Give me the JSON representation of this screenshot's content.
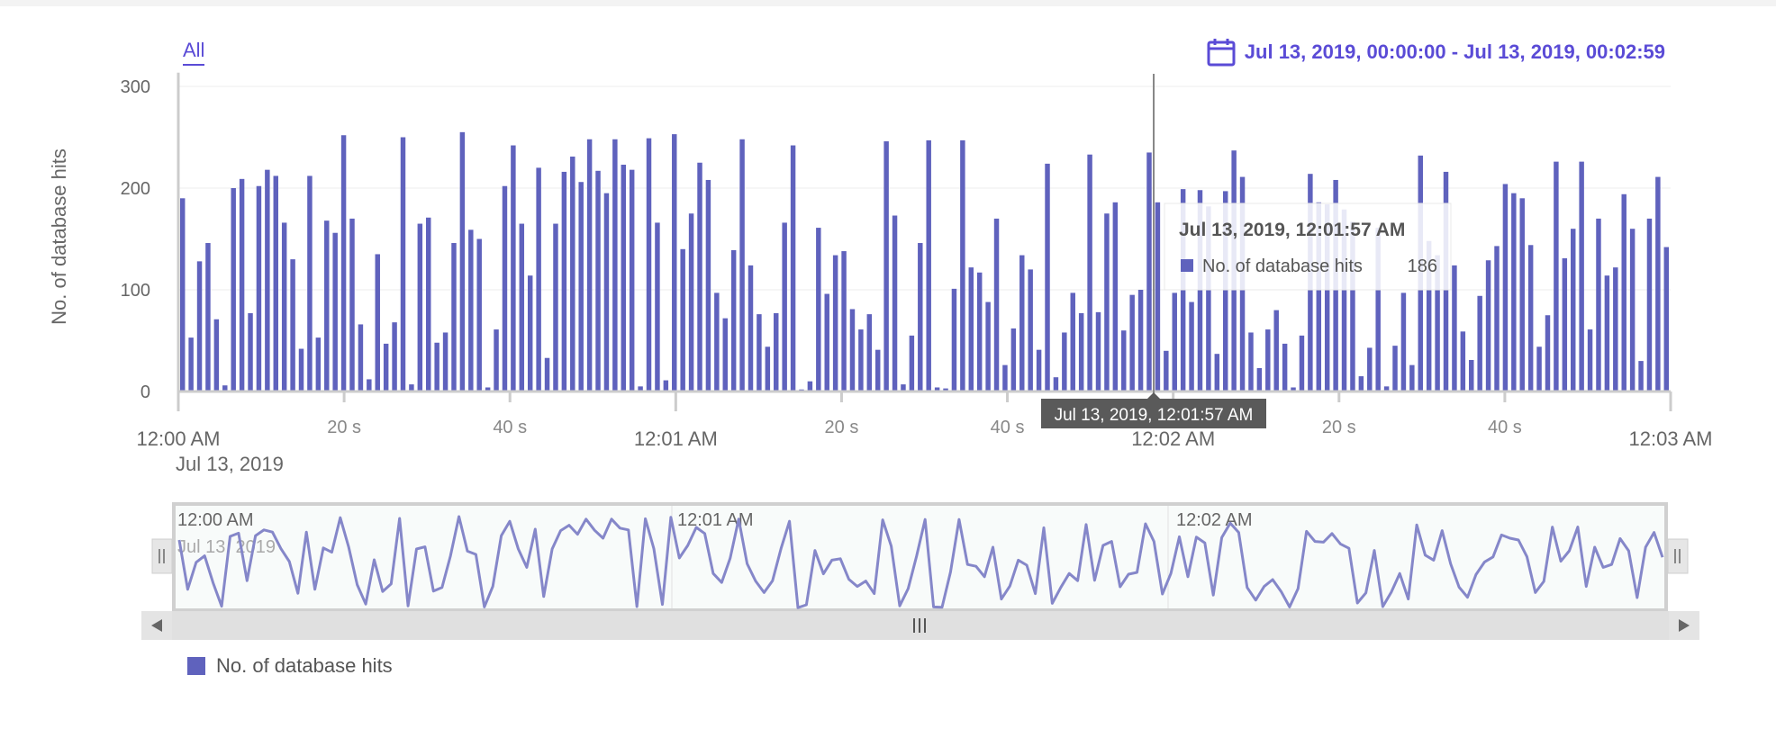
{
  "range_selector": {
    "all_label": "All"
  },
  "date_range": {
    "label": "Jul 13, 2019, 00:00:00 - Jul 13, 2019, 00:02:59"
  },
  "tooltip": {
    "title": "Jul 13, 2019, 12:01:57 AM",
    "series_label": "No. of database hits",
    "value": "186",
    "crosshair_label": "Jul 13, 2019, 12:01:57 AM"
  },
  "navigator": {
    "tick_labels": [
      "12:00 AM",
      "12:01 AM",
      "12:02 AM"
    ],
    "date_label": "Jul 13, 2019"
  },
  "legend": {
    "label": "No. of database hits"
  },
  "colors": {
    "bar": "#5f62bd",
    "line": "#8587c9",
    "accent": "#5a4bd6"
  },
  "chart_data": {
    "type": "bar",
    "title": "",
    "xlabel": "",
    "ylabel": "No. of database hits",
    "ylim": [
      0,
      310
    ],
    "y_ticks": [
      0,
      100,
      200,
      300
    ],
    "x_range_seconds": [
      0,
      180
    ],
    "x_tick_labels": [
      {
        "t": 0,
        "label": "12:00 AM",
        "major": true,
        "sub": "Jul 13, 2019"
      },
      {
        "t": 20,
        "label": "20 s",
        "major": false
      },
      {
        "t": 40,
        "label": "40 s",
        "major": false
      },
      {
        "t": 60,
        "label": "12:01 AM",
        "major": true
      },
      {
        "t": 80,
        "label": "20 s",
        "major": false
      },
      {
        "t": 100,
        "label": "40 s",
        "major": false
      },
      {
        "t": 120,
        "label": "12:02 AM",
        "major": true
      },
      {
        "t": 140,
        "label": "20 s",
        "major": false
      },
      {
        "t": 160,
        "label": "40 s",
        "major": false
      },
      {
        "t": 180,
        "label": "12:03 AM",
        "major": true
      }
    ],
    "grid": true,
    "legend_position": "bottom-left",
    "series": [
      {
        "name": "No. of database hits",
        "values": [
          190,
          53,
          128,
          146,
          71,
          6,
          200,
          209,
          77,
          202,
          218,
          212,
          166,
          130,
          42,
          212,
          53,
          168,
          156,
          252,
          170,
          66,
          12,
          135,
          47,
          68,
          250,
          7,
          165,
          171,
          48,
          58,
          146,
          255,
          159,
          150,
          4,
          61,
          202,
          242,
          165,
          114,
          220,
          33,
          165,
          216,
          231,
          206,
          248,
          217,
          195,
          248,
          223,
          218,
          5,
          249,
          166,
          11,
          253,
          140,
          175,
          225,
          208,
          97,
          72,
          139,
          248,
          124,
          76,
          44,
          77,
          166,
          242,
          2,
          10,
          161,
          96,
          134,
          138,
          81,
          61,
          76,
          41,
          246,
          173,
          7,
          55,
          146,
          247,
          4,
          3,
          101,
          247,
          122,
          117,
          88,
          170,
          26,
          62,
          134,
          120,
          41,
          224,
          14,
          58,
          97,
          77,
          233,
          78,
          175,
          186,
          60,
          95,
          100,
          235,
          186,
          40,
          97,
          199,
          88,
          198,
          182,
          37,
          197,
          237,
          211,
          58,
          23,
          61,
          80,
          47,
          4,
          55,
          214,
          186,
          184,
          208,
          179,
          167,
          15,
          43,
          161,
          5,
          45,
          97,
          26,
          232,
          148,
          134,
          216,
          124,
          59,
          31,
          94,
          129,
          143,
          204,
          195,
          190,
          144,
          44,
          75,
          226,
          131,
          160,
          226,
          61,
          170,
          114,
          122,
          194,
          160,
          30,
          170,
          211,
          142
        ]
      }
    ]
  }
}
